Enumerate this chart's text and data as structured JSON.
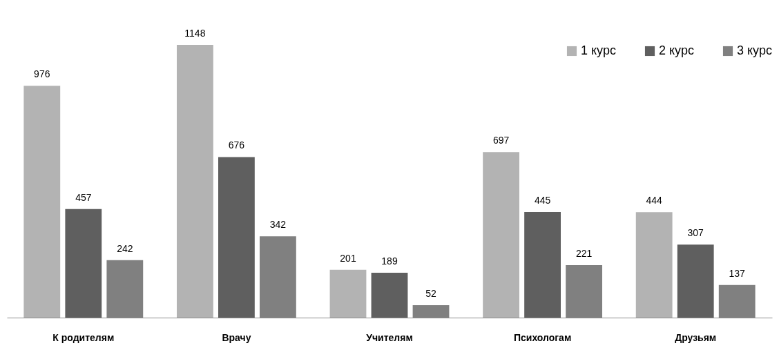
{
  "chart_data": {
    "type": "bar",
    "categories": [
      "К родителям",
      "Врачу",
      "Учителям",
      "Психологам",
      "Друзьям"
    ],
    "series": [
      {
        "name": "1 курс",
        "color": "#b3b3b3",
        "values": [
          976,
          1148,
          201,
          697,
          444
        ]
      },
      {
        "name": "2 курс",
        "color": "#5f5f5f",
        "values": [
          457,
          676,
          189,
          445,
          307
        ]
      },
      {
        "name": "3 курс",
        "color": "#808080",
        "values": [
          242,
          342,
          52,
          221,
          137
        ]
      }
    ],
    "data_labels": true,
    "legend": "top right",
    "tick_labels": "x"
  }
}
